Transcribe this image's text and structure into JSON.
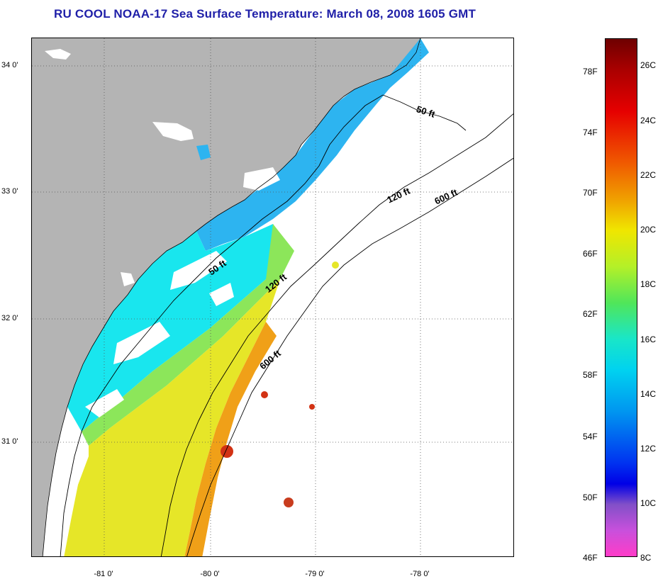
{
  "title": "RU COOL  NOAA-17  Sea Surface Temperature:  March 08, 2008 1605 GMT",
  "lat_labels": [
    "34 0'",
    "33 0'",
    "32 0'",
    "31 0'"
  ],
  "lon_labels": [
    "-81 0'",
    "-80 0'",
    "-79 0'",
    "-78 0'"
  ],
  "depth_contours": [
    "50 ft",
    "120 ft",
    "600 ft",
    "50 ft",
    "120 ft",
    "600 ft"
  ],
  "colorbar": {
    "fahrenheit": [
      "78F",
      "74F",
      "70F",
      "66F",
      "62F",
      "58F",
      "54F",
      "50F",
      "46F"
    ],
    "celsius": [
      "26C",
      "24C",
      "22C",
      "20C",
      "18C",
      "16C",
      "14C",
      "12C",
      "10C",
      "8C"
    ]
  },
  "colors": {
    "land": "#b4b4b4",
    "title": "#1f1fa8",
    "grid": "#555555",
    "cool_water": "#2db4f0",
    "cyan_water": "#19e6ee",
    "green_water": "#8ce65a",
    "yellow_water": "#e6e628",
    "orange_water": "#f0a018",
    "red_water": "#d23214"
  }
}
